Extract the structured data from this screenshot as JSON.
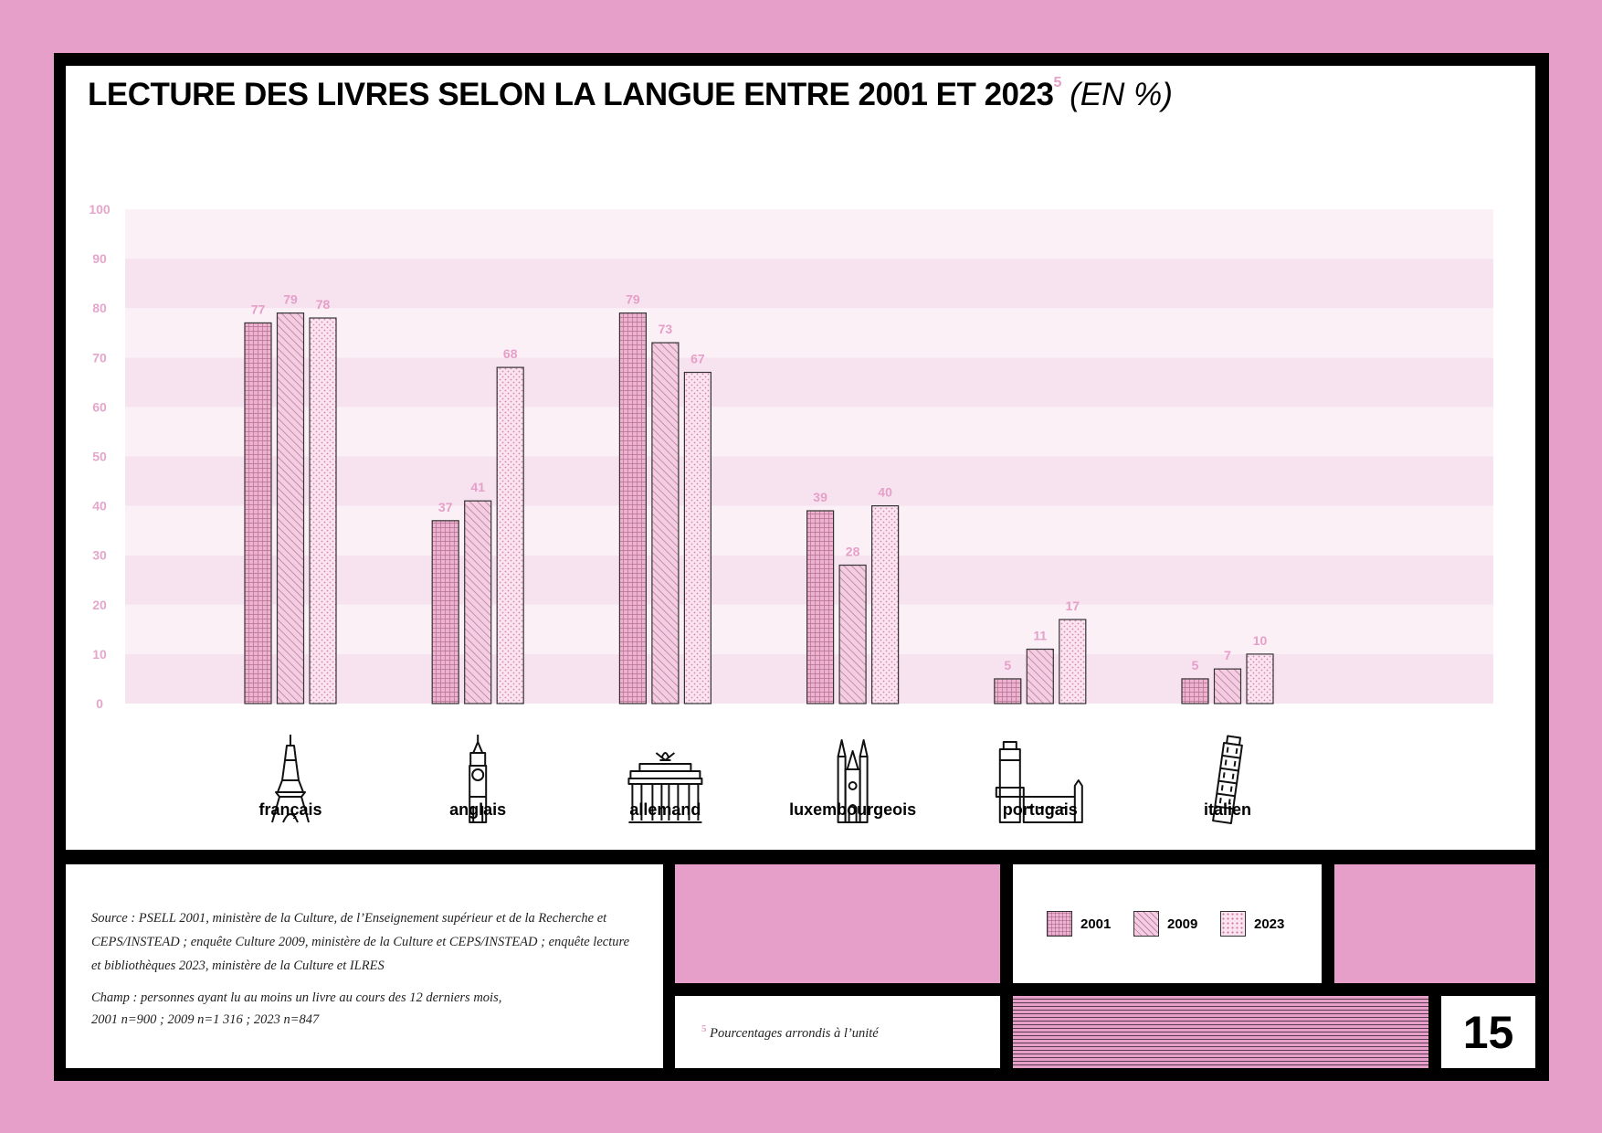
{
  "title": {
    "main": "LECTURE DES LIVRES SELON LA LANGUE ENTRE 2001 ET 2023",
    "footnote_ref": "5",
    "unit": "(EN %)"
  },
  "chart_data": {
    "type": "bar",
    "title": "LECTURE DES LIVRES SELON LA LANGUE ENTRE 2001 ET 2023 (EN %)",
    "categories": [
      "français",
      "anglais",
      "allemand",
      "luxembourgeois",
      "portugais",
      "italien"
    ],
    "series": [
      {
        "name": "2001",
        "values": [
          77,
          37,
          79,
          39,
          5,
          5
        ]
      },
      {
        "name": "2009",
        "values": [
          79,
          41,
          73,
          28,
          11,
          7
        ]
      },
      {
        "name": "2023",
        "values": [
          78,
          68,
          67,
          40,
          17,
          10
        ]
      }
    ],
    "yticks": [
      0,
      10,
      20,
      30,
      40,
      50,
      60,
      70,
      80,
      90,
      100
    ],
    "ylim": [
      0,
      100
    ],
    "xlabel": "",
    "ylabel": "",
    "grid": "alternating horizontal bands",
    "legend_position": "bottom-right",
    "colors": {
      "accent_pink": "#e59fc8",
      "tick_label": "#e5a6cb",
      "band_light": "#fbf0f6",
      "band_dark": "#f7e3ef"
    }
  },
  "icons": [
    "eiffel-tower-icon",
    "big-ben-icon",
    "brandenburg-gate-icon",
    "luxembourg-cathedral-icon",
    "belem-tower-icon",
    "leaning-tower-pisa-icon"
  ],
  "source": {
    "text": "Source : PSELL 2001, ministère de la Culture, de l’Enseignement supérieur et de la Recherche et CEPS/INSTEAD ; enquête Culture 2009, ministère de la Culture et CEPS/INSTEAD ; enquête lecture et bibliothèques 2023, ministère de la Culture et ILRES",
    "champ_line1": "Champ : personnes ayant lu au moins un livre au cours des 12 derniers mois,",
    "champ_line2": "2001 n=900 ; 2009 n=1 316 ; 2023 n=847"
  },
  "footnote": {
    "marker": "5",
    "text": "Pourcentages arrondis à l’unité"
  },
  "legend": [
    {
      "label": "2001"
    },
    {
      "label": "2009"
    },
    {
      "label": "2023"
    }
  ],
  "page_number": "15"
}
